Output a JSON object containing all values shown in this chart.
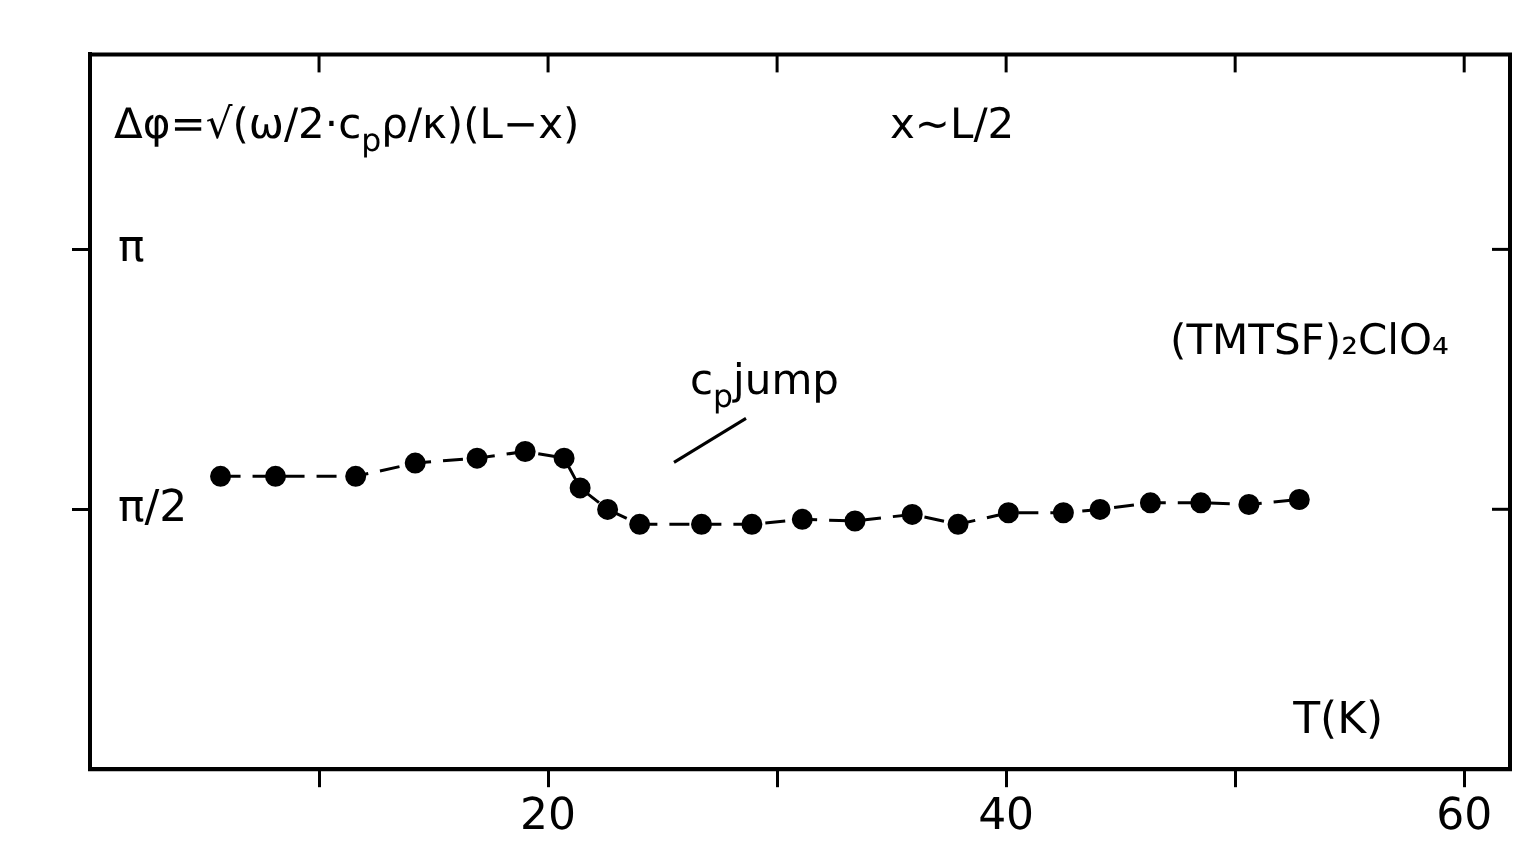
{
  "chart_data": {
    "type": "line",
    "xlabel": "T(K)",
    "x": [
      5.7,
      8.1,
      11.6,
      14.2,
      16.9,
      19.0,
      20.7,
      21.4,
      22.6,
      24.0,
      26.7,
      28.9,
      31.1,
      33.4,
      35.9,
      37.9,
      40.1,
      42.5,
      44.1,
      46.3,
      48.5,
      50.6,
      52.8
    ],
    "series": [
      {
        "color": "#000000",
        "values": [
          1.77,
          1.77,
          1.77,
          1.85,
          1.88,
          1.92,
          1.88,
          1.7,
          1.57,
          1.48,
          1.48,
          1.48,
          1.51,
          1.5,
          1.54,
          1.48,
          1.55,
          1.55,
          1.57,
          1.61,
          1.61,
          1.6,
          1.63
        ]
      }
    ],
    "xlim": [
      0,
      62
    ],
    "xticks": [
      {
        "value": 10,
        "label": null
      },
      20,
      {
        "value": 30,
        "label": null
      },
      40,
      {
        "value": 50,
        "label": null
      },
      60
    ],
    "ylim": [
      0,
      4.32
    ],
    "yticks": [
      {
        "value": 1.5708,
        "label": "π/2"
      },
      {
        "value": 3.1416,
        "label": "π"
      }
    ],
    "annotations": [
      "Δφ=√(ω/2·c$_{p}$ρ/κ)(L−x)",
      "x~L/2",
      "(TMTSF)₂ClO₄",
      "c$_{p}$jump"
    ],
    "marker": "circle",
    "line_style": "dashed",
    "grid": false,
    "legend": false
  }
}
